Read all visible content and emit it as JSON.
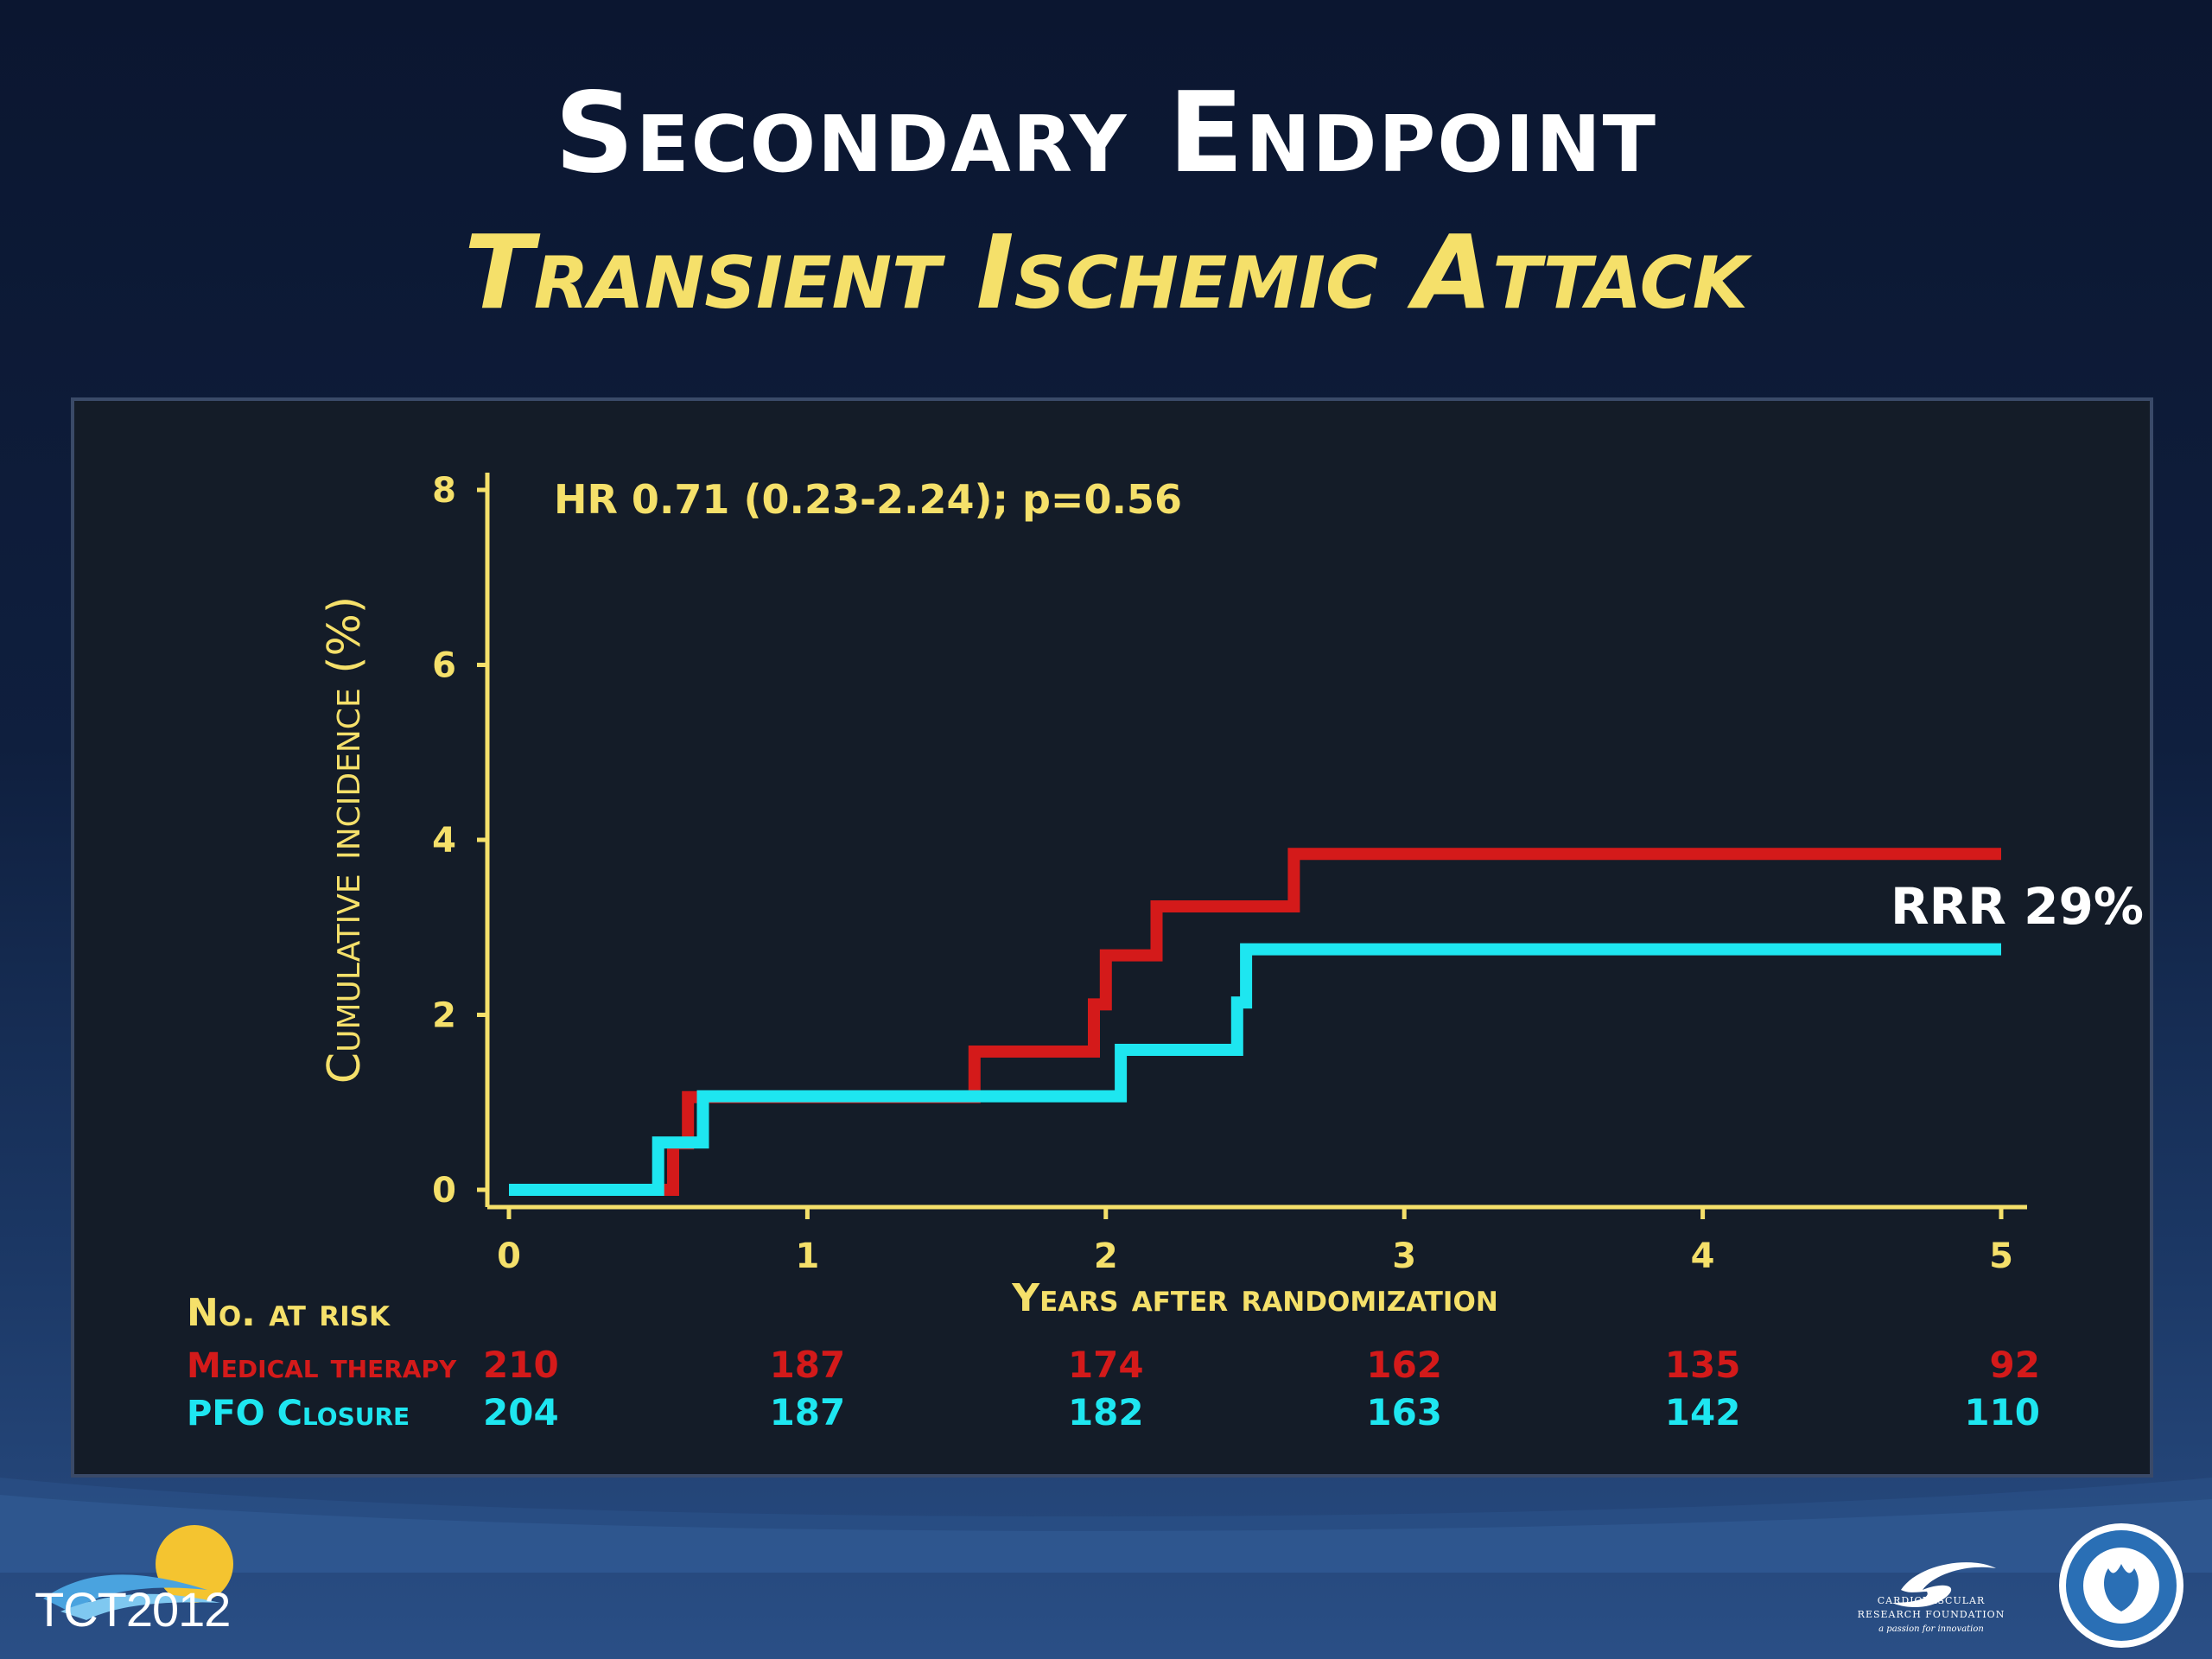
{
  "slide": {
    "title": "Secondary Endpoint",
    "subtitle": "Transient Ischemic Attack"
  },
  "chart_data": {
    "type": "line",
    "step": true,
    "xlabel": "Years after randomization",
    "ylabel": "Cumulative incidence (%)",
    "xlim": [
      0,
      5
    ],
    "ylim": [
      0,
      8
    ],
    "x_ticks": [
      0,
      1,
      2,
      3,
      4,
      5
    ],
    "y_ticks": [
      0,
      2,
      4,
      6,
      8
    ],
    "grid": false,
    "annotations": {
      "hazard_ratio": "HR 0.71 (0.23-2.24); p=0.56",
      "rrr": "RRR 29%"
    },
    "series": [
      {
        "name": "Medical therapy",
        "color": "#d41a1a",
        "points": [
          [
            0,
            0
          ],
          [
            0.55,
            0
          ],
          [
            0.55,
            0.53
          ],
          [
            0.6,
            0.53
          ],
          [
            0.6,
            1.06
          ],
          [
            1.56,
            1.06
          ],
          [
            1.56,
            1.58
          ],
          [
            1.96,
            1.58
          ],
          [
            1.96,
            2.12
          ],
          [
            2.0,
            2.12
          ],
          [
            2.0,
            2.68
          ],
          [
            2.17,
            2.68
          ],
          [
            2.17,
            3.24
          ],
          [
            2.63,
            3.24
          ],
          [
            2.63,
            3.84
          ],
          [
            5,
            3.84
          ]
        ]
      },
      {
        "name": "PFO Closure",
        "color": "#1ee6f0",
        "points": [
          [
            0,
            0
          ],
          [
            0.5,
            0
          ],
          [
            0.5,
            0.54
          ],
          [
            0.65,
            0.54
          ],
          [
            0.65,
            1.07
          ],
          [
            2.05,
            1.07
          ],
          [
            2.05,
            1.6
          ],
          [
            2.44,
            1.6
          ],
          [
            2.44,
            2.14
          ],
          [
            2.47,
            2.14
          ],
          [
            2.47,
            2.75
          ],
          [
            5,
            2.75
          ]
        ]
      }
    ],
    "at_risk": {
      "header": "No. at risk",
      "rows": [
        {
          "label": "Medical therapy",
          "color": "#d41a1a",
          "values": [
            210,
            187,
            174,
            162,
            135,
            92
          ]
        },
        {
          "label": "PFO Closure",
          "color": "#1ee6f0",
          "values": [
            204,
            187,
            182,
            163,
            142,
            110
          ]
        }
      ]
    }
  },
  "footer": {
    "tct": "TCT2012",
    "crf_line1": "CARDIOVASCULAR",
    "crf_line2": "RESEARCH FOUNDATION",
    "crf_tagline": "a passion for innovation"
  },
  "colors": {
    "axis": "#f5e06a",
    "title": "#ffffff",
    "subtitle": "#f5e06a"
  }
}
